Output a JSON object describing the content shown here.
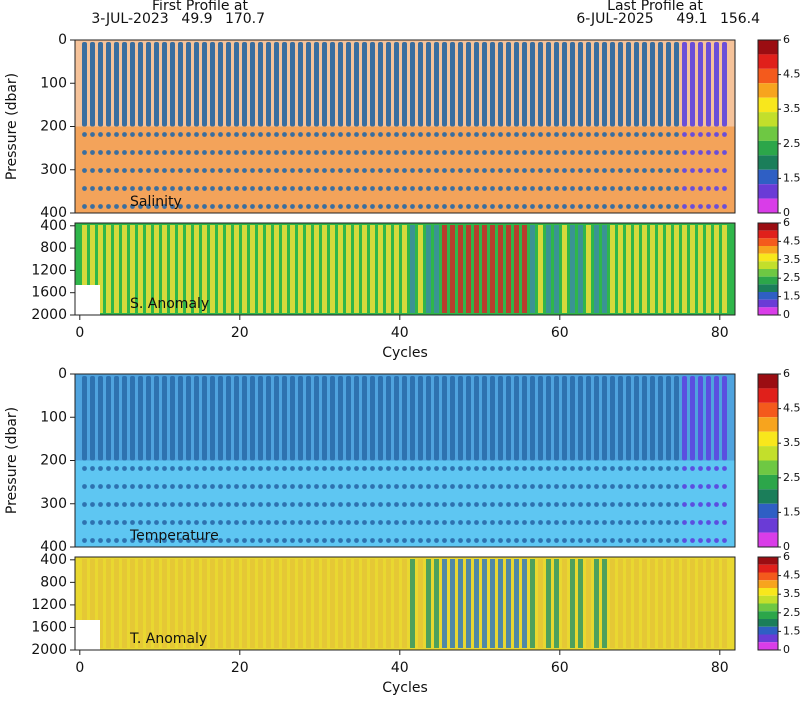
{
  "header": {
    "first_label": "First Profile at",
    "first_date": "3-JUL-2023",
    "first_lat": 49.9,
    "first_lon": 170.7,
    "last_label": "Last Profile at",
    "last_date": "6-JUL-2025",
    "last_lat": 49.1,
    "last_lon": 156.4
  },
  "chart_data": [
    {
      "type": "contour",
      "label": "Salinity",
      "ylabel": "Pressure (dbar)",
      "xlim": [
        -0.6,
        81.9
      ],
      "ylim": [
        0,
        400
      ],
      "yticks": [
        0,
        100,
        200,
        300,
        400
      ],
      "colorbar_ticks": [
        {
          "value": 6,
          "label": "6"
        },
        {
          "value": 4.5,
          "label": "4.5"
        },
        {
          "value": 3.5,
          "label": "3.5"
        },
        {
          "value": 2.5,
          "label": "2.5"
        },
        {
          "value": 1.5,
          "label": "1.5"
        },
        {
          "value": 0,
          "label": "0"
        }
      ]
    },
    {
      "type": "contour",
      "label": "S. Anomaly",
      "xlabel": "Cycles",
      "xlim": [
        -0.6,
        81.9
      ],
      "xticks": [
        0,
        20,
        40,
        60,
        80
      ],
      "ylim": [
        350,
        2000
      ],
      "yticks": [
        400,
        800,
        1200,
        1600,
        2000
      ],
      "colorbar_ticks": [
        {
          "value": 6,
          "label": "6"
        },
        {
          "value": 4.5,
          "label": "4.5"
        },
        {
          "value": 3.5,
          "label": "3.5"
        },
        {
          "value": 2.5,
          "label": "2.5"
        },
        {
          "value": 1.5,
          "label": "1.5"
        },
        {
          "value": 0,
          "label": "0"
        }
      ]
    },
    {
      "type": "contour",
      "label": "Temperature",
      "ylabel": "Pressure (dbar)",
      "xlim": [
        -0.6,
        81.9
      ],
      "ylim": [
        0,
        400
      ],
      "yticks": [
        0,
        100,
        200,
        300,
        400
      ],
      "colorbar_ticks": [
        {
          "value": 6,
          "label": "6"
        },
        {
          "value": 4.5,
          "label": "4.5"
        },
        {
          "value": 3.5,
          "label": "3.5"
        },
        {
          "value": 2.5,
          "label": "2.5"
        },
        {
          "value": 1.5,
          "label": "1.5"
        },
        {
          "value": 0,
          "label": "0"
        }
      ]
    },
    {
      "type": "contour",
      "label": "T. Anomaly",
      "xlabel": "Cycles",
      "xlim": [
        -0.6,
        81.9
      ],
      "xticks": [
        0,
        20,
        40,
        60,
        80
      ],
      "ylim": [
        350,
        2000
      ],
      "yticks": [
        400,
        800,
        1200,
        1600,
        2000
      ],
      "colorbar_ticks": [
        {
          "value": 6,
          "label": "6"
        },
        {
          "value": 4.5,
          "label": "4.5"
        },
        {
          "value": 3.5,
          "label": "3.5"
        },
        {
          "value": 2.5,
          "label": "2.5"
        },
        {
          "value": 1.5,
          "label": "1.5"
        },
        {
          "value": 0,
          "label": "0"
        }
      ]
    }
  ]
}
